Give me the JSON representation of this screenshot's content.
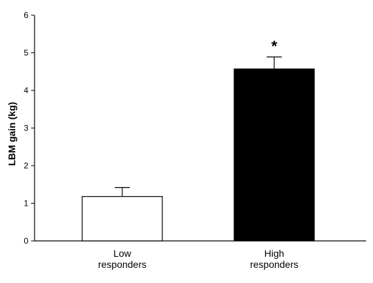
{
  "chart_data": {
    "type": "bar",
    "categories": [
      "Low responders",
      "High responders"
    ],
    "category_lines": [
      [
        "Low",
        "responders"
      ],
      [
        "High",
        "responders"
      ]
    ],
    "values": [
      1.18,
      4.57
    ],
    "error_upper": [
      0.24,
      0.32
    ],
    "bar_fill": [
      "#ffffff",
      "#000000"
    ],
    "bar_stroke": "#000000",
    "annotations": [
      "",
      "*"
    ],
    "title": "",
    "xlabel": "",
    "ylabel": "LBM gain (kg)",
    "ylim": [
      0,
      6
    ],
    "yticks": [
      0,
      1,
      2,
      3,
      4,
      5,
      6
    ],
    "grid": false,
    "legend": "none"
  }
}
